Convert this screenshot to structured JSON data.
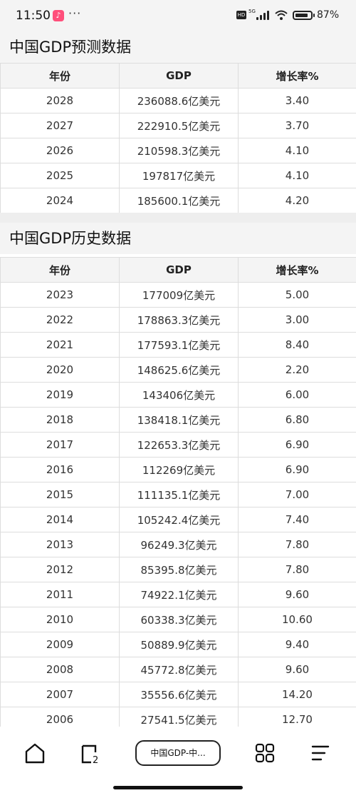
{
  "status_bar": {
    "time": "11:50",
    "more": "···",
    "hd": "HD",
    "network": "5G",
    "battery_pct": "87%",
    "battery_level": 0.87
  },
  "forecast": {
    "title": "中国GDP预测数据",
    "headers": [
      "年份",
      "GDP",
      "增长率%"
    ],
    "rows": [
      [
        "2028",
        "236088.6亿美元",
        "3.40"
      ],
      [
        "2027",
        "222910.5亿美元",
        "3.70"
      ],
      [
        "2026",
        "210598.3亿美元",
        "4.10"
      ],
      [
        "2025",
        "197817亿美元",
        "4.10"
      ],
      [
        "2024",
        "185600.1亿美元",
        "4.20"
      ]
    ]
  },
  "history": {
    "title": "中国GDP历史数据",
    "headers": [
      "年份",
      "GDP",
      "增长率%"
    ],
    "rows": [
      [
        "2023",
        "177009亿美元",
        "5.00"
      ],
      [
        "2022",
        "178863.3亿美元",
        "3.00"
      ],
      [
        "2021",
        "177593.1亿美元",
        "8.40"
      ],
      [
        "2020",
        "148625.6亿美元",
        "2.20"
      ],
      [
        "2019",
        "143406亿美元",
        "6.00"
      ],
      [
        "2018",
        "138418.1亿美元",
        "6.80"
      ],
      [
        "2017",
        "122653.3亿美元",
        "6.90"
      ],
      [
        "2016",
        "112269亿美元",
        "6.90"
      ],
      [
        "2015",
        "111135.1亿美元",
        "7.00"
      ],
      [
        "2014",
        "105242.4亿美元",
        "7.40"
      ],
      [
        "2013",
        "96249.3亿美元",
        "7.80"
      ],
      [
        "2012",
        "85395.8亿美元",
        "7.80"
      ],
      [
        "2011",
        "74922.1亿美元",
        "9.60"
      ],
      [
        "2010",
        "60338.3亿美元",
        "10.60"
      ],
      [
        "2009",
        "50889.9亿美元",
        "9.40"
      ],
      [
        "2008",
        "45772.8亿美元",
        "9.60"
      ],
      [
        "2007",
        "35556.6亿美元",
        "14.20"
      ],
      [
        "2006",
        "27541.5亿美元",
        "12.70"
      ]
    ]
  },
  "bottom_nav": {
    "tab_label": "中国GDP-中...",
    "tab_count": "2",
    "icons": [
      "home-icon",
      "tabs-icon",
      "apps-grid-icon",
      "menu-icon"
    ]
  }
}
